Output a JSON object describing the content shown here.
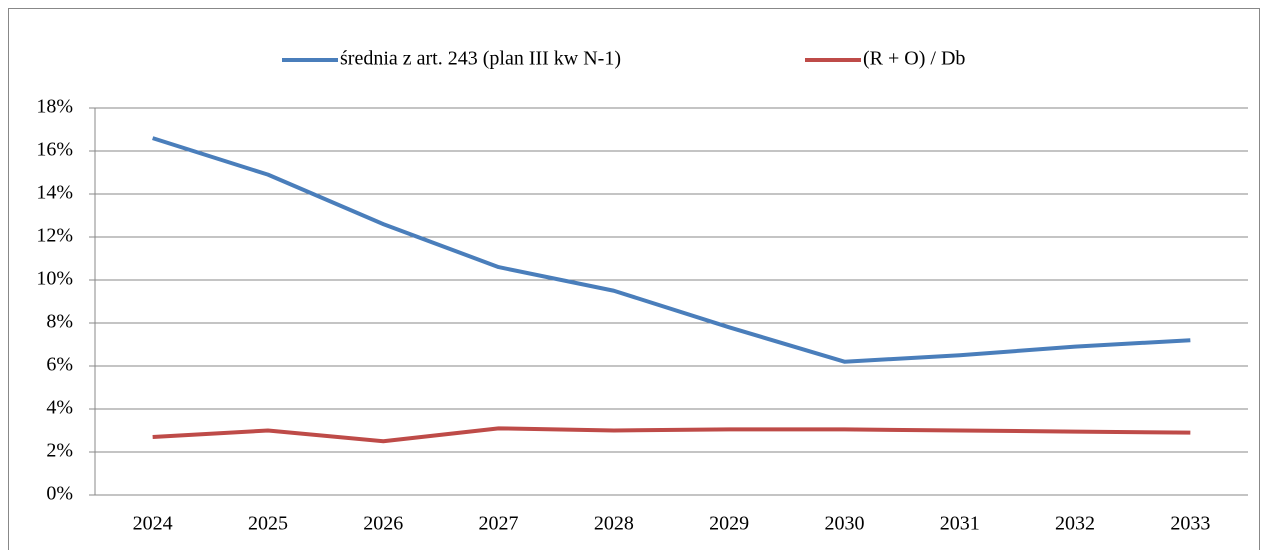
{
  "chart_data": {
    "type": "line",
    "categories": [
      "2024",
      "2025",
      "2026",
      "2027",
      "2028",
      "2029",
      "2030",
      "2031",
      "2032",
      "2033"
    ],
    "series": [
      {
        "name": "średnia z art. 243 (plan III kw N-1)",
        "color": "#4a7ebb",
        "values": [
          16.6,
          14.9,
          12.6,
          10.6,
          9.5,
          7.8,
          6.2,
          6.5,
          6.9,
          7.2
        ]
      },
      {
        "name": "(R + O) / Db",
        "color": "#be4b48",
        "values": [
          2.7,
          3.0,
          2.5,
          3.1,
          3.0,
          3.05,
          3.05,
          3.0,
          2.95,
          2.9
        ]
      }
    ],
    "ylim": [
      0,
      18
    ],
    "yticks": [
      {
        "value": 0,
        "label": "0%"
      },
      {
        "value": 2,
        "label": "2%"
      },
      {
        "value": 4,
        "label": "4%"
      },
      {
        "value": 6,
        "label": "6%"
      },
      {
        "value": 8,
        "label": "8%"
      },
      {
        "value": 10,
        "label": "10%"
      },
      {
        "value": 12,
        "label": "12%"
      },
      {
        "value": 14,
        "label": "14%"
      },
      {
        "value": 16,
        "label": "16%"
      },
      {
        "value": 18,
        "label": "18%"
      }
    ],
    "grid": true,
    "legend": "top"
  }
}
